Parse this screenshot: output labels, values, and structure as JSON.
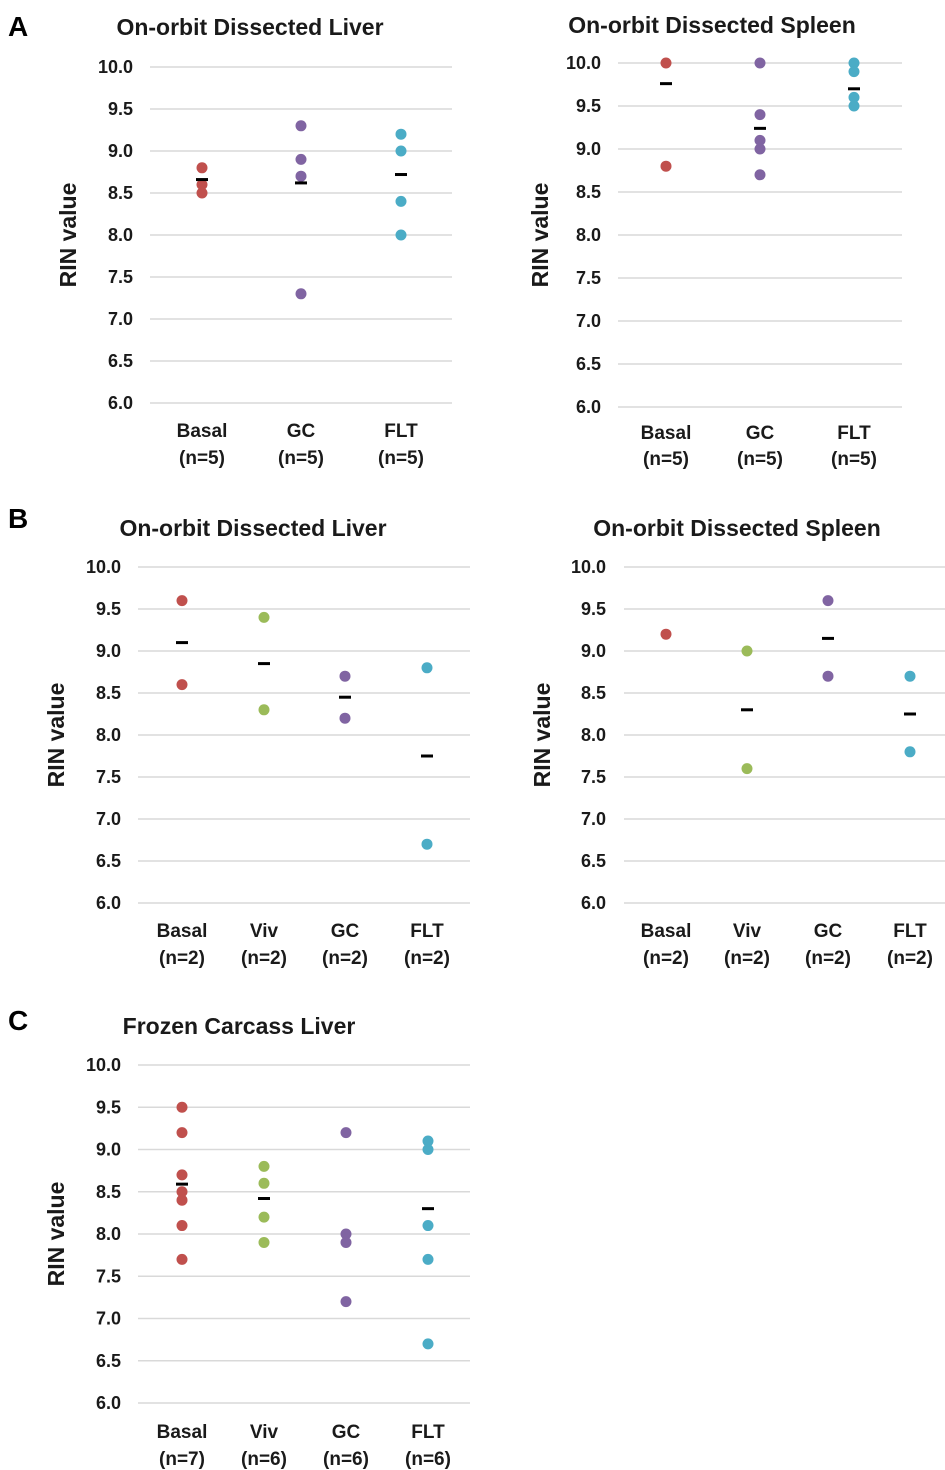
{
  "panels": [
    {
      "letter": "A"
    },
    {
      "letter": "B"
    },
    {
      "letter": "C"
    }
  ],
  "colors": {
    "Basal": "#c0504d",
    "Viv": "#9bbb59",
    "GC": "#8064a2",
    "FLT": "#4bacc6",
    "mean": "#000000"
  },
  "chart_data": [
    {
      "type": "scatter",
      "panel": "A",
      "title": "On-orbit Dissected Liver",
      "ylabel": "RIN value",
      "ylim": [
        6.0,
        10.0
      ],
      "yticks": [
        "6.0",
        "6.5",
        "7.0",
        "7.5",
        "8.0",
        "8.5",
        "9.0",
        "9.5",
        "10.0"
      ],
      "categories": [
        {
          "name": "Basal",
          "n": "(n=5)",
          "values": [
            8.8,
            8.6,
            8.5
          ],
          "mean": 8.66
        },
        {
          "name": "GC",
          "n": "(n=5)",
          "values": [
            9.3,
            8.9,
            8.7,
            7.3
          ],
          "mean": 8.62
        },
        {
          "name": "FLT",
          "n": "(n=5)",
          "values": [
            9.2,
            9.0,
            8.4,
            8.0
          ],
          "mean": 8.72
        }
      ],
      "grid": true
    },
    {
      "type": "scatter",
      "panel": "A",
      "title": "On-orbit Dissected Spleen",
      "ylabel": "RIN value",
      "ylim": [
        6.0,
        10.0
      ],
      "yticks": [
        "6.0",
        "6.5",
        "7.0",
        "7.5",
        "8.0",
        "8.5",
        "9.0",
        "9.5",
        "10.0"
      ],
      "categories": [
        {
          "name": "Basal",
          "n": "(n=5)",
          "values": [
            10.0,
            8.8
          ],
          "mean": 9.76
        },
        {
          "name": "GC",
          "n": "(n=5)",
          "values": [
            10.0,
            9.4,
            9.1,
            9.0,
            8.7
          ],
          "mean": 9.24
        },
        {
          "name": "FLT",
          "n": "(n=5)",
          "values": [
            10.0,
            9.9,
            9.6,
            9.5
          ],
          "mean": 9.7
        }
      ],
      "grid": true
    },
    {
      "type": "scatter",
      "panel": "B",
      "title": "On-orbit Dissected Liver",
      "ylabel": "RIN value",
      "ylim": [
        6.0,
        10.0
      ],
      "yticks": [
        "6.0",
        "6.5",
        "7.0",
        "7.5",
        "8.0",
        "8.5",
        "9.0",
        "9.5",
        "10.0"
      ],
      "categories": [
        {
          "name": "Basal",
          "n": "(n=2)",
          "values": [
            9.6,
            8.6
          ],
          "mean": 9.1
        },
        {
          "name": "Viv",
          "n": "(n=2)",
          "values": [
            9.4,
            8.3
          ],
          "mean": 8.85
        },
        {
          "name": "GC",
          "n": "(n=2)",
          "values": [
            8.7,
            8.2
          ],
          "mean": 8.45
        },
        {
          "name": "FLT",
          "n": "(n=2)",
          "values": [
            8.8,
            6.7
          ],
          "mean": 7.75
        }
      ],
      "grid": true
    },
    {
      "type": "scatter",
      "panel": "B",
      "title": "On-orbit Dissected Spleen",
      "ylabel": "RIN value",
      "ylim": [
        6.0,
        10.0
      ],
      "yticks": [
        "6.0",
        "6.5",
        "7.0",
        "7.5",
        "8.0",
        "8.5",
        "9.0",
        "9.5",
        "10.0"
      ],
      "categories": [
        {
          "name": "Basal",
          "n": "(n=2)",
          "values": [
            9.2
          ],
          "mean": null
        },
        {
          "name": "Viv",
          "n": "(n=2)",
          "values": [
            9.0,
            7.6
          ],
          "mean": 8.3
        },
        {
          "name": "GC",
          "n": "(n=2)",
          "values": [
            9.6,
            8.7
          ],
          "mean": 9.15
        },
        {
          "name": "FLT",
          "n": "(n=2)",
          "values": [
            8.7,
            7.8
          ],
          "mean": 8.25
        }
      ],
      "grid": true
    },
    {
      "type": "scatter",
      "panel": "C",
      "title": "Frozen Carcass Liver",
      "ylabel": "RIN value",
      "ylim": [
        6.0,
        10.0
      ],
      "yticks": [
        "6.0",
        "6.5",
        "7.0",
        "7.5",
        "8.0",
        "8.5",
        "9.0",
        "9.5",
        "10.0"
      ],
      "categories": [
        {
          "name": "Basal",
          "n": "(n=7)",
          "values": [
            9.5,
            9.2,
            8.7,
            8.5,
            8.4,
            8.1,
            7.7
          ],
          "mean": 8.59
        },
        {
          "name": "Viv",
          "n": "(n=6)",
          "values": [
            8.8,
            8.6,
            8.2,
            7.9
          ],
          "mean": 8.42
        },
        {
          "name": "GC",
          "n": "(n=6)",
          "values": [
            9.2,
            8.0,
            7.9,
            7.2
          ],
          "mean": null
        },
        {
          "name": "FLT",
          "n": "(n=6)",
          "values": [
            9.1,
            9.0,
            8.1,
            7.7,
            6.7
          ],
          "mean": 8.3
        }
      ],
      "grid": true
    }
  ]
}
